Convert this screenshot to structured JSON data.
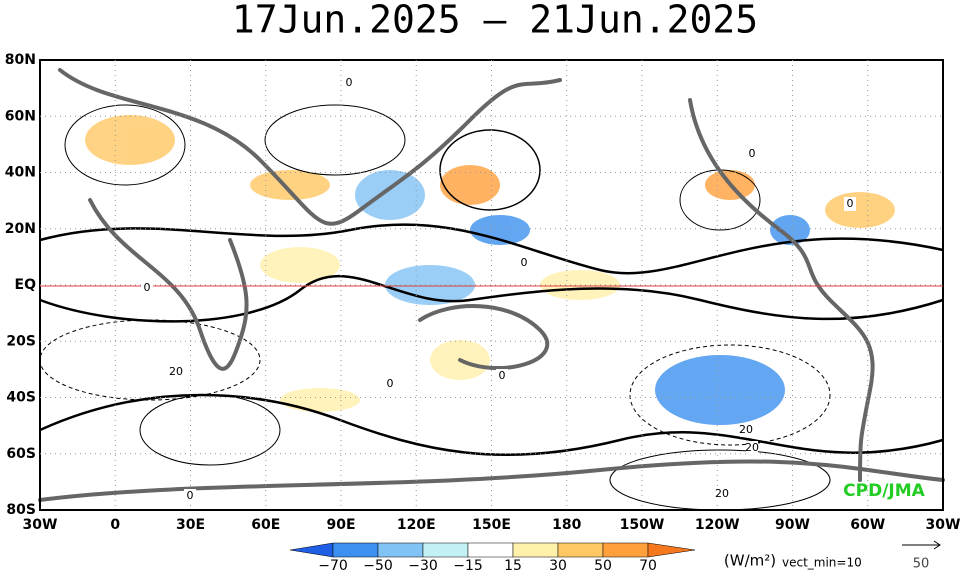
{
  "title": "17Jun.2025 – 21Jun.2025",
  "lat_labels": [
    "80N",
    "60N",
    "40N",
    "20N",
    "EQ",
    "20S",
    "40S",
    "60S",
    "80S"
  ],
  "lon_labels": [
    "30W",
    "0",
    "30E",
    "60E",
    "90E",
    "120E",
    "150E",
    "180",
    "150W",
    "120W",
    "90W",
    "60W",
    "30W"
  ],
  "colorbar": {
    "labels": [
      "−70",
      "−50",
      "−30",
      "−15",
      "15",
      "30",
      "50",
      "70"
    ],
    "colors": [
      "#1e5fe6",
      "#3c91f0",
      "#82c3f5",
      "#c3f0f5",
      "#ffffff",
      "#fff0aa",
      "#ffc864",
      "#ffa03c",
      "#f5781e"
    ],
    "unit": "(W/m²)",
    "vector_note": "vect_min=10",
    "reference_vector": "50"
  },
  "credit": "CPD/JMA",
  "contour_labels": [
    "0",
    "0",
    "0",
    "0",
    "0",
    "0",
    "0",
    "0",
    "20",
    "20",
    "20",
    "20"
  ]
}
